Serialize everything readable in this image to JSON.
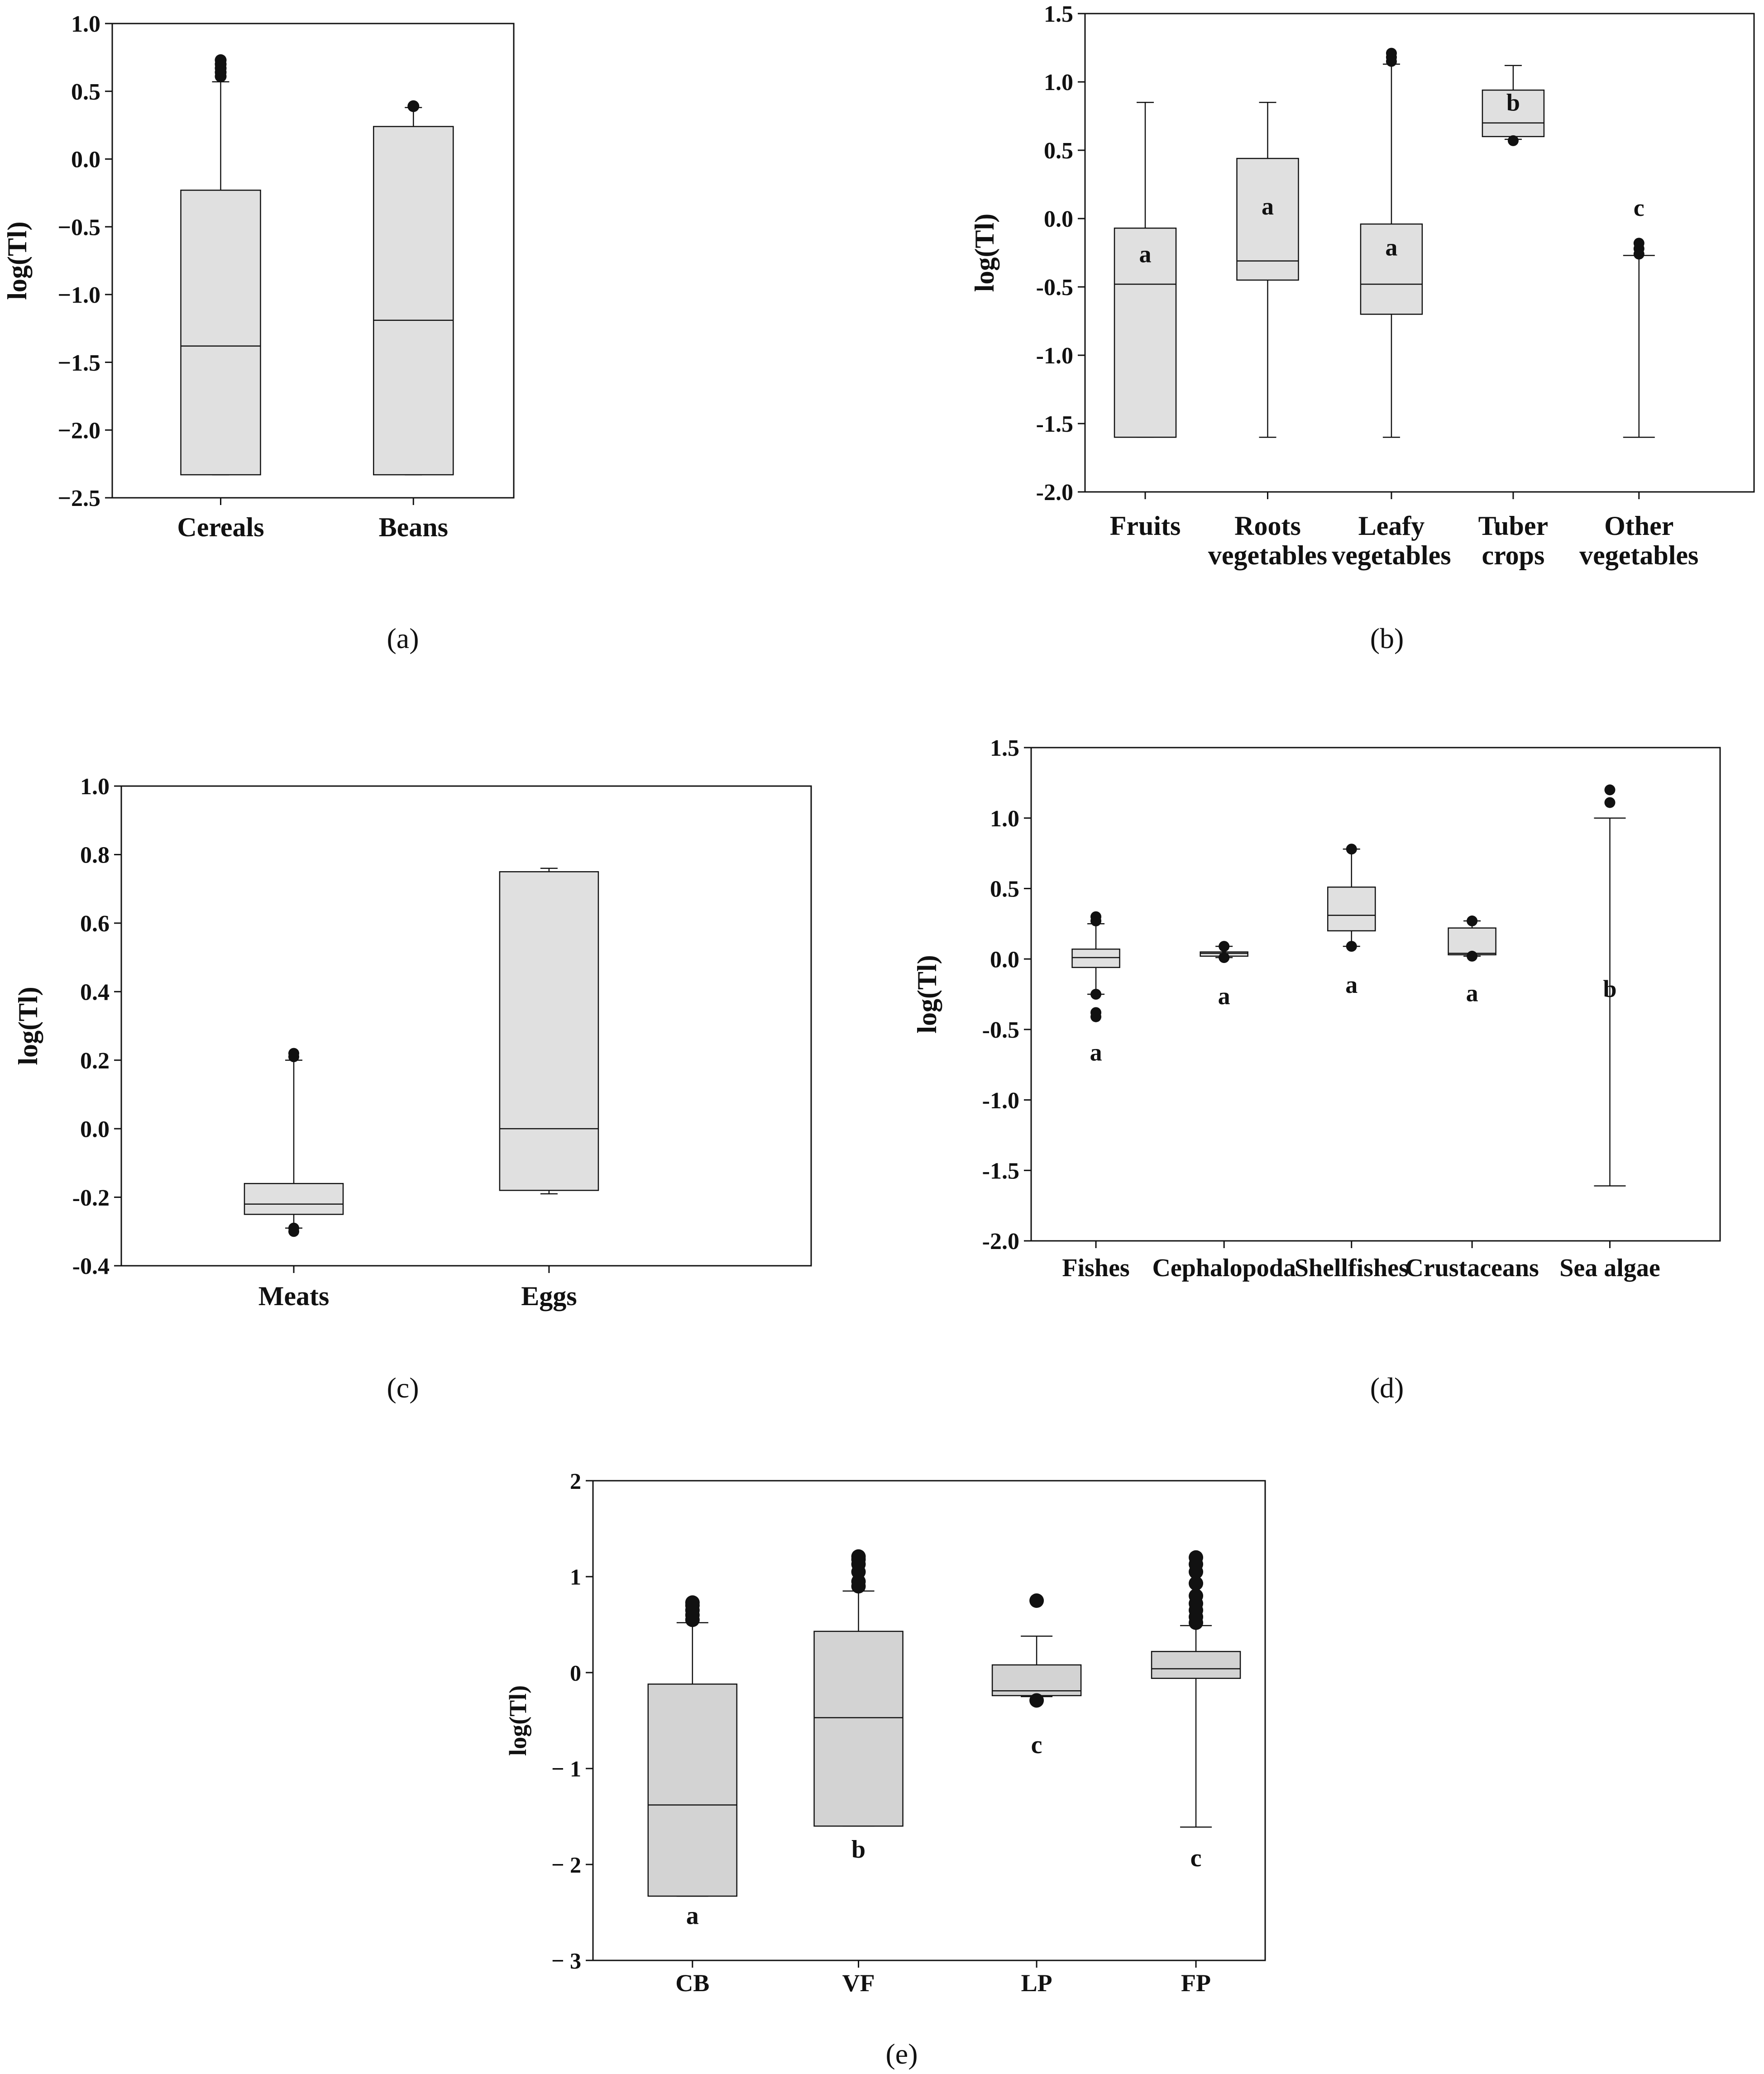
{
  "figure": {
    "captions": [
      "(a)",
      "(b)",
      "(c)",
      "(d)",
      "(e)"
    ]
  },
  "chart_data": [
    {
      "id": "a",
      "type": "box",
      "ylabel": "log(Tl)",
      "yticks": [
        "1.0",
        "0.5",
        "0.0",
        "−0.5",
        "−1.0",
        "−1.5",
        "−2.0",
        "−2.5"
      ],
      "ylim": [
        -2.5,
        1.0
      ],
      "categories": [
        "Cereals",
        "Beans"
      ],
      "boxes": [
        {
          "min": -2.33,
          "q1": -2.33,
          "median": -1.38,
          "q3": -0.23,
          "max": 0.57,
          "outliers": [
            0.61,
            0.64,
            0.67,
            0.7,
            0.73
          ],
          "letter": ""
        },
        {
          "min": -2.33,
          "q1": -2.33,
          "median": -1.19,
          "q3": 0.24,
          "max": 0.38,
          "outliers": [
            0.39
          ],
          "letter": ""
        }
      ]
    },
    {
      "id": "b",
      "type": "box",
      "ylabel": "log(Tl)",
      "yticks": [
        "1.5",
        "1.0",
        "0.5",
        "0.0",
        "-0.5",
        "-1.0",
        "-1.5",
        "-2.0"
      ],
      "ylim": [
        -2.0,
        1.5
      ],
      "categories": [
        [
          "Fruits"
        ],
        [
          "Roots",
          "vegetables"
        ],
        [
          "Leafy",
          "vegetables"
        ],
        [
          "Tuber",
          "crops"
        ],
        [
          "Other",
          "vegetables"
        ]
      ],
      "boxes": [
        {
          "min": -1.6,
          "q1": -1.6,
          "median": -0.48,
          "q3": -0.07,
          "max": 0.85,
          "outliers": [],
          "letter": "a"
        },
        {
          "min": -1.6,
          "q1": -0.45,
          "median": -0.31,
          "q3": 0.44,
          "max": 0.85,
          "outliers": [],
          "letter": "a"
        },
        {
          "min": -1.6,
          "q1": -0.7,
          "median": -0.48,
          "q3": -0.04,
          "max": 1.13,
          "outliers": [
            1.15,
            1.18,
            1.21
          ],
          "letter": "a"
        },
        {
          "min": 0.58,
          "q1": 0.6,
          "median": 0.7,
          "q3": 0.94,
          "max": 1.12,
          "outliers": [
            0.57
          ],
          "letter": "b"
        },
        {
          "min": -1.6,
          "q1": -1.6,
          "median": -1.6,
          "q3": -1.6,
          "max": -0.27,
          "outliers": [
            -0.18,
            -0.22,
            -0.26
          ],
          "letter": "c"
        }
      ]
    },
    {
      "id": "c",
      "type": "box",
      "ylabel": "log(Tl)",
      "yticks": [
        "1.0",
        "0.8",
        "0.6",
        "0.4",
        "0.2",
        "0.0",
        "-0.2",
        "-0.4"
      ],
      "ylim": [
        -0.4,
        1.0
      ],
      "categories": [
        "Meats",
        "Eggs"
      ],
      "boxes": [
        {
          "min": -0.29,
          "q1": -0.25,
          "median": -0.22,
          "q3": -0.16,
          "max": 0.2,
          "outliers": [
            0.21,
            0.22,
            -0.29,
            -0.3
          ],
          "letter": ""
        },
        {
          "min": -0.19,
          "q1": -0.18,
          "median": 0.0,
          "q3": 0.75,
          "max": 0.76,
          "outliers": [],
          "letter": ""
        }
      ]
    },
    {
      "id": "d",
      "type": "box",
      "ylabel": "log(Tl)",
      "yticks": [
        "1.5",
        "1.0",
        "0.5",
        "0.0",
        "-0.5",
        "-1.0",
        "-1.5",
        "-2.0"
      ],
      "ylim": [
        -2.0,
        1.5
      ],
      "categories": [
        "Fishes",
        "Cephalopoda",
        "Shellfishes",
        "Crustaceans",
        "Sea algae"
      ],
      "boxes": [
        {
          "min": -0.25,
          "q1": -0.06,
          "median": 0.01,
          "q3": 0.07,
          "max": 0.25,
          "outliers": [
            0.3,
            0.27,
            -0.25,
            -0.38,
            -0.41
          ],
          "letter": "a"
        },
        {
          "min": 0.01,
          "q1": 0.02,
          "median": 0.04,
          "q3": 0.05,
          "max": 0.09,
          "outliers": [
            0.09,
            0.01
          ],
          "letter": "a"
        },
        {
          "min": 0.09,
          "q1": 0.2,
          "median": 0.31,
          "q3": 0.51,
          "max": 0.78,
          "outliers": [
            0.78,
            0.09
          ],
          "letter": "a"
        },
        {
          "min": 0.02,
          "q1": 0.03,
          "median": 0.04,
          "q3": 0.22,
          "max": 0.27,
          "outliers": [
            0.27,
            0.02
          ],
          "letter": "a"
        },
        {
          "min": -1.61,
          "q1": -1.61,
          "median": -1.61,
          "q3": -1.61,
          "max": 1.0,
          "outliers": [
            1.11,
            1.2
          ],
          "letter": "b"
        }
      ]
    },
    {
      "id": "e",
      "type": "box",
      "ylabel": "log(Tl)",
      "yticks": [
        "2",
        "1",
        "0",
        "− 1",
        "− 2",
        "− 3"
      ],
      "ylim": [
        -3,
        2
      ],
      "categories": [
        "CB",
        "VF",
        "LP",
        "FP"
      ],
      "boxes": [
        {
          "min": -2.33,
          "q1": -2.33,
          "median": -1.38,
          "q3": -0.12,
          "max": 0.52,
          "outliers": [
            0.55,
            0.6,
            0.65,
            0.7,
            0.73
          ],
          "letter": "a"
        },
        {
          "min": -1.6,
          "q1": -1.6,
          "median": -0.47,
          "q3": 0.43,
          "max": 0.85,
          "outliers": [
            0.9,
            0.95,
            1.05,
            1.13,
            1.18,
            1.21
          ],
          "letter": "b"
        },
        {
          "min": -0.25,
          "q1": -0.24,
          "median": -0.19,
          "q3": 0.08,
          "max": 0.38,
          "outliers": [
            0.75,
            -0.29
          ],
          "letter": "c"
        },
        {
          "min": -1.61,
          "q1": -0.06,
          "median": 0.04,
          "q3": 0.22,
          "max": 0.49,
          "outliers": [
            0.52,
            0.58,
            0.65,
            0.72,
            0.8,
            0.93,
            1.05,
            1.13,
            1.2
          ],
          "letter": "c"
        }
      ]
    }
  ]
}
